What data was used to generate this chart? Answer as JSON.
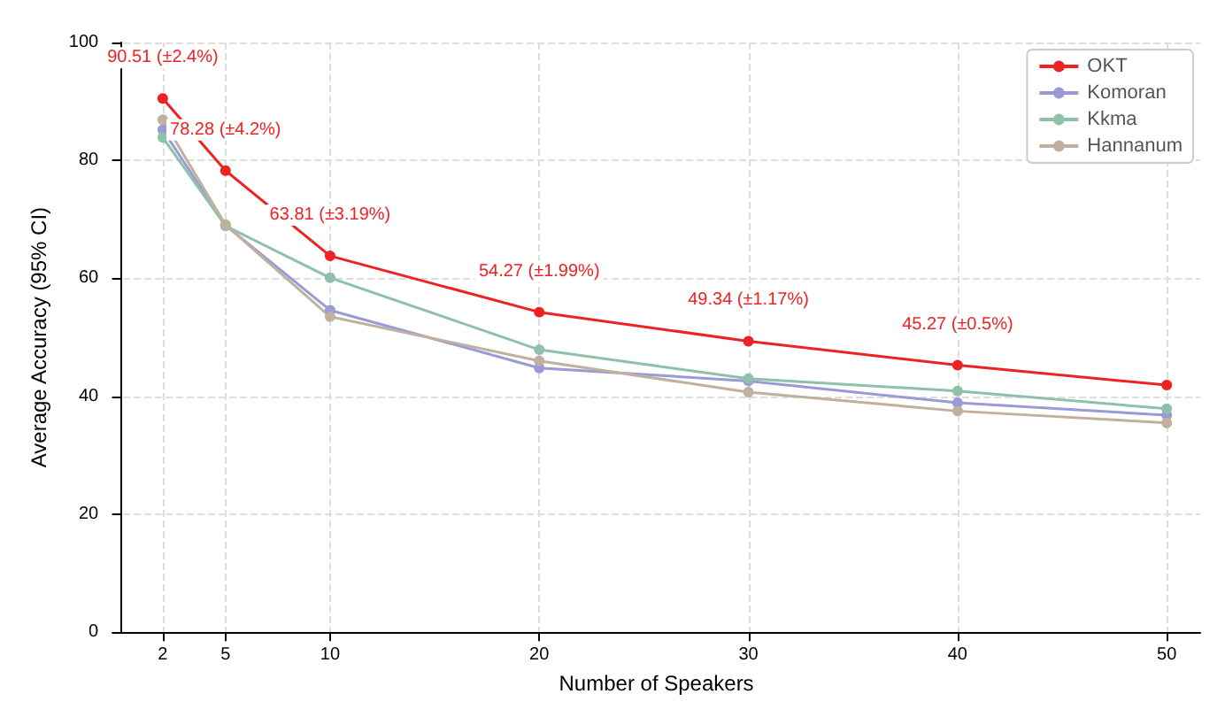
{
  "chart_data": {
    "type": "line",
    "xlabel": "Number of Speakers",
    "ylabel": "Average Accuracy (95% CI)",
    "x": [
      2,
      5,
      10,
      20,
      30,
      40,
      50
    ],
    "series": [
      {
        "name": "OKT",
        "color": "#ee2222",
        "values": [
          90.51,
          78.28,
          63.81,
          54.27,
          49.34,
          45.27,
          41.9
        ],
        "value_labels": [
          "90.51 (±2.4%)",
          "78.28 (±4.2%)",
          "63.81 (±3.19%)",
          "54.27 (±1.99%)",
          "49.34 (±1.17%)",
          "45.27 (±0.5%)",
          null
        ]
      },
      {
        "name": "Komoran",
        "color": "#9a9ad6",
        "values": [
          85.2,
          69.0,
          54.6,
          44.8,
          42.6,
          38.9,
          36.8
        ]
      },
      {
        "name": "Kkma",
        "color": "#8fc0aa",
        "values": [
          83.9,
          68.9,
          60.1,
          47.9,
          43.0,
          40.9,
          37.9
        ]
      },
      {
        "name": "Hannanum",
        "color": "#c0b09e",
        "values": [
          86.9,
          69.1,
          53.5,
          46.0,
          40.7,
          37.5,
          35.5
        ]
      }
    ],
    "xlim": [
      -0.4,
      51.6
    ],
    "xticks": [
      2,
      5,
      10,
      20,
      30,
      40,
      50
    ],
    "ylim": [
      0,
      100
    ],
    "yticks": [
      0,
      20,
      40,
      60,
      80,
      100
    ],
    "grid": true,
    "legend": "top right",
    "marker": "circle",
    "line_style": "solid"
  }
}
